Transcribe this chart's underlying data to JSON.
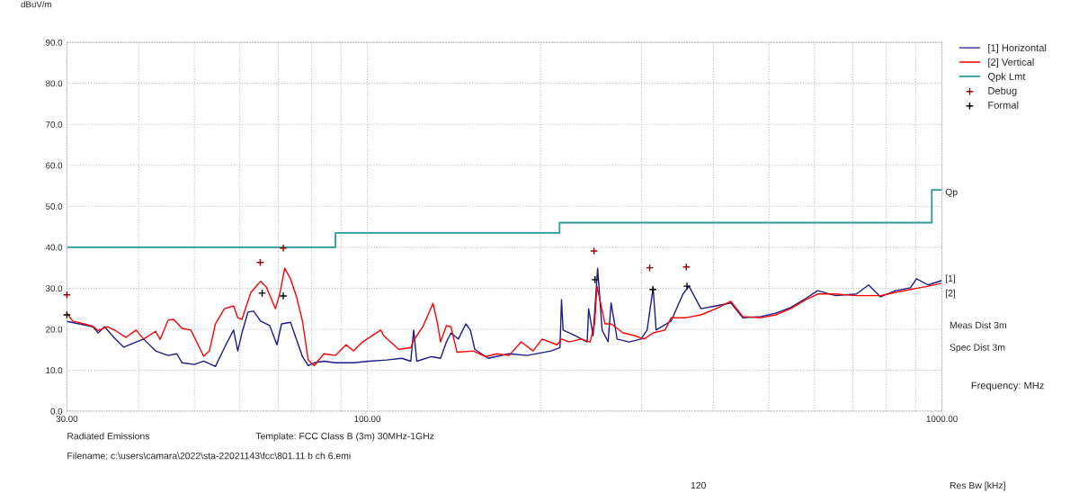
{
  "chart_data": {
    "type": "line",
    "ylabel": "dBuV/m",
    "xlabel": "Frequency: MHz",
    "log": "x",
    "xlim": [
      30,
      1000
    ],
    "ylim": [
      0,
      90
    ],
    "xticks": [
      {
        "value": 30,
        "label": "30.00"
      },
      {
        "value": 40,
        "label": null
      },
      {
        "value": 50,
        "label": null
      },
      {
        "value": 60,
        "label": null
      },
      {
        "value": 70,
        "label": null
      },
      {
        "value": 80,
        "label": null
      },
      {
        "value": 90,
        "label": null
      },
      {
        "value": 100,
        "label": "100.00"
      },
      {
        "value": 200,
        "label": null
      },
      {
        "value": 300,
        "label": null
      },
      {
        "value": 400,
        "label": null
      },
      {
        "value": 500,
        "label": null
      },
      {
        "value": 600,
        "label": null
      },
      {
        "value": 700,
        "label": null
      },
      {
        "value": 800,
        "label": null
      },
      {
        "value": 900,
        "label": null
      },
      {
        "value": 1000,
        "label": "1000.00"
      }
    ],
    "yticks": [
      {
        "value": 0,
        "label": "0.0"
      },
      {
        "value": 10,
        "label": "10.0"
      },
      {
        "value": 20,
        "label": "20.0"
      },
      {
        "value": 30,
        "label": "30.0"
      },
      {
        "value": 40,
        "label": "40.0"
      },
      {
        "value": 50,
        "label": "50.0"
      },
      {
        "value": 60,
        "label": "60.0"
      },
      {
        "value": 70,
        "label": "70.0"
      },
      {
        "value": 80,
        "label": "80.0"
      },
      {
        "value": 90,
        "label": "90.0"
      }
    ],
    "grid": true,
    "legend": "right",
    "series": [
      {
        "name": "[1] Horizontal",
        "color": "#1a1a8c",
        "x": [
          30,
          31.8,
          33.3,
          34.0,
          34.9,
          36.2,
          37.7,
          39.0,
          40.8,
          42.8,
          45.0,
          46.6,
          47.6,
          50.0,
          51.9,
          54.4,
          56.4,
          58.5,
          59.5,
          60.5,
          62.0,
          63.4,
          65.2,
          67.6,
          69.6,
          70.9,
          73.5,
          77.1,
          78.9,
          80.8,
          84.0,
          88.0,
          91.8,
          94.6,
          100.6,
          108.1,
          114.8,
          119.0,
          120.4,
          121.9,
          129.3,
          134.1,
          137.3,
          139.8,
          144.0,
          148.4,
          151.1,
          153.8,
          162.3,
          176.5,
          189.7,
          208.8,
          216.4,
          217.7,
          219.1,
          230.0,
          241.3,
          242.7,
          247.1,
          251.6,
          256.2,
          262.4,
          265.6,
          272.1,
          285.4,
          299.4,
          306.8,
          314.3,
          318.1,
          337.8,
          354.3,
          362.9,
          380.7,
          404.2,
          429.2,
          450.3,
          483.8,
          513.6,
          545.4,
          579.3,
          607.7,
          653.0,
          710.0,
          745.2,
          781.8,
          830.1,
          881.2,
          902.8,
          946.3,
          1000
        ],
        "values": [
          21.9,
          21.2,
          20.6,
          19.1,
          20.6,
          18.0,
          15.6,
          16.5,
          17.6,
          14.7,
          13.6,
          14.0,
          11.8,
          11.4,
          12.2,
          10.9,
          15.5,
          19.8,
          14.7,
          19.1,
          24.2,
          24.4,
          22.0,
          20.9,
          16.2,
          21.3,
          21.7,
          13.3,
          11.1,
          11.8,
          12.2,
          11.8,
          11.8,
          11.8,
          12.2,
          12.5,
          12.9,
          12.2,
          19.8,
          12.2,
          13.3,
          12.9,
          16.9,
          19.1,
          17.6,
          21.3,
          19.8,
          15.1,
          12.9,
          14.0,
          13.6,
          14.7,
          15.5,
          27.2,
          19.8,
          18.4,
          16.9,
          25.0,
          18.4,
          34.9,
          19.8,
          16.9,
          26.4,
          17.6,
          16.9,
          17.6,
          19.8,
          30.1,
          19.8,
          22.0,
          28.6,
          30.5,
          25.0,
          25.7,
          26.4,
          22.8,
          23.1,
          23.9,
          25.3,
          27.5,
          29.4,
          28.2,
          28.6,
          30.8,
          27.9,
          29.4,
          30.1,
          32.3,
          30.8,
          31.9
        ]
      },
      {
        "name": "[2] Vertical",
        "color": "#ff0000",
        "x": [
          30,
          30.7,
          31.8,
          33.3,
          34.0,
          35.3,
          36.6,
          38.0,
          39.6,
          40.8,
          42.8,
          43.6,
          45.0,
          46.0,
          47.6,
          49.3,
          51.9,
          53.1,
          54.4,
          56.4,
          58.5,
          59.5,
          60.5,
          62.7,
          65.2,
          66.7,
          69.2,
          70.5,
          71.8,
          73.5,
          75.3,
          77.1,
          78.9,
          80.8,
          84.0,
          88.0,
          91.8,
          94.6,
          98.1,
          105.5,
          106.8,
          113.4,
          119.0,
          120.4,
          124.9,
          130.1,
          132.5,
          134.1,
          137.3,
          139.8,
          143.2,
          152.9,
          160.4,
          168.2,
          176.5,
          185.2,
          194.3,
          201.4,
          213.9,
          217.7,
          224.3,
          235.5,
          244.2,
          248.6,
          251.0,
          259.2,
          265.6,
          278.6,
          292.4,
          303.1,
          314.3,
          329.8,
          337.8,
          358.5,
          380.7,
          404.2,
          429.2,
          450.3,
          483.8,
          513.6,
          545.4,
          579.3,
          607.7,
          653.0,
          710.0,
          781.8,
          830.1,
          881.2,
          946.3,
          1000
        ],
        "values": [
          23.9,
          22.0,
          21.5,
          20.7,
          19.7,
          20.6,
          19.5,
          18.0,
          19.8,
          17.6,
          19.5,
          17.5,
          22.2,
          22.4,
          20.2,
          19.8,
          13.4,
          14.7,
          21.3,
          25.0,
          25.7,
          22.8,
          22.4,
          29.0,
          31.7,
          30.3,
          25.0,
          29.0,
          34.9,
          32.3,
          27.9,
          22.0,
          12.5,
          11.1,
          14.0,
          13.6,
          16.2,
          14.7,
          16.9,
          19.8,
          18.4,
          15.1,
          15.5,
          17.3,
          20.6,
          26.3,
          21.3,
          16.9,
          20.9,
          20.6,
          14.4,
          14.7,
          13.3,
          14.0,
          13.6,
          16.9,
          14.7,
          17.6,
          16.2,
          17.6,
          16.9,
          17.6,
          16.9,
          21.3,
          30.5,
          21.3,
          21.3,
          19.1,
          18.4,
          17.6,
          19.1,
          19.8,
          22.8,
          22.8,
          23.5,
          25.0,
          26.8,
          23.1,
          22.8,
          23.5,
          25.0,
          27.2,
          28.6,
          28.6,
          28.2,
          28.2,
          29.0,
          29.7,
          30.5,
          31.2
        ]
      },
      {
        "name": "Qpk Lmt",
        "type": "step",
        "color": "#2a9a96",
        "x": [
          30,
          88,
          216,
          960,
          1000
        ],
        "values": [
          40,
          43.5,
          46,
          54,
          54
        ]
      },
      {
        "name": "Debug",
        "type": "scatter",
        "marker": "cross",
        "color": "#990000",
        "x": [
          30,
          65.1,
          71.4,
          248,
          310,
          359
        ],
        "values": [
          28.4,
          36.3,
          39.8,
          39.1,
          35.0,
          35.2
        ]
      },
      {
        "name": "Formal",
        "type": "scatter",
        "marker": "cross",
        "color": "#000000",
        "x": [
          30,
          65.6,
          71.4,
          249,
          314,
          360
        ],
        "values": [
          23.5,
          28.8,
          28.1,
          32.1,
          29.7,
          30.5
        ]
      }
    ],
    "annotations": [
      "Qp",
      "[1]",
      "[2]",
      "Meas Dist 3m",
      "Spec Dist 3m",
      "Radiated Emissions",
      "Template: FCC Class B (3m) 30MHz-1GHz",
      "Filename: c:\\users\\camara\\2022\\sta-22021143\\fcc\\801.11 b ch 6.emi",
      "120",
      "Res Bw [kHz]"
    ]
  }
}
